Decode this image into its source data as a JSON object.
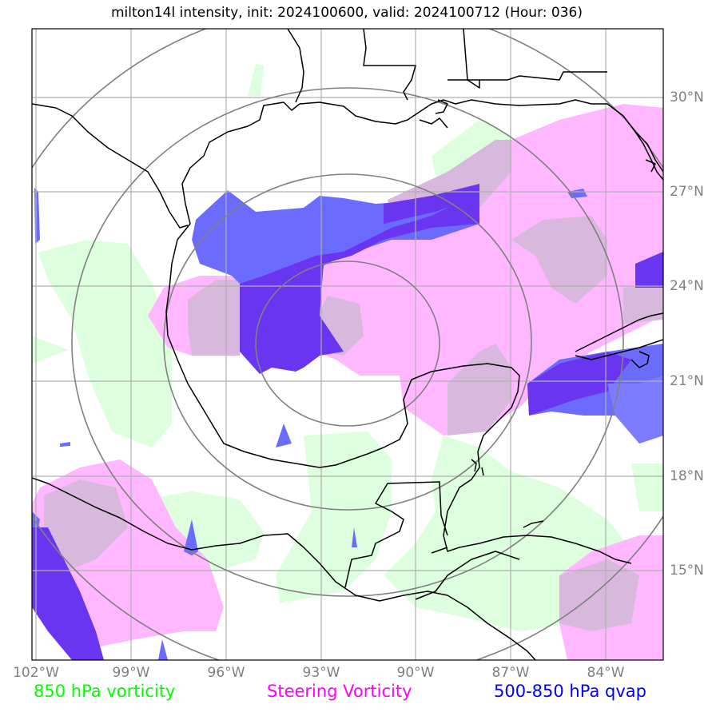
{
  "title": "milton14l intensity, init: 2024100600, valid: 2024100712 (Hour: 036)",
  "lon_labels": [
    "102°W",
    "99°W",
    "96°W",
    "93°W",
    "90°W",
    "87°W",
    "84°W"
  ],
  "lat_labels": [
    "30°N",
    "27°N",
    "24°N",
    "21°N",
    "18°N",
    "15°N"
  ],
  "legend": [
    {
      "label": "850 hPa vorticity",
      "color": "#00ff00"
    },
    {
      "label": "Steering Vorticity",
      "color": "#ff00ff"
    },
    {
      "label": "500-850 hPa qvap",
      "color": "#0000ff"
    }
  ],
  "colors": {
    "vort850": "#ddffdd",
    "steering": "#ffb8ff",
    "qvap": "#6b6bff",
    "qvap_dark": "#6a35f0",
    "overlap": "#d8b8dd",
    "grid": "#b0b0b0",
    "range_rings": "#808080",
    "coast": "#000000"
  }
}
